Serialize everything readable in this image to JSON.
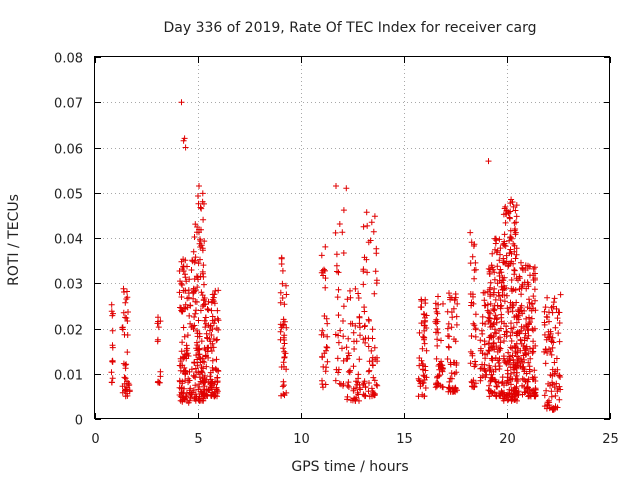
{
  "chart_data": {
    "type": "scatter",
    "title": "Day 336 of 2019, Rate Of TEC Index for receiver carg",
    "xlabel": "GPS time / hours",
    "ylabel": "ROTI / TECUs",
    "xlim": [
      0,
      25
    ],
    "ylim": [
      0,
      0.08
    ],
    "x_ticks": [
      0,
      5,
      10,
      15,
      20,
      25
    ],
    "x_tick_labels": [
      "0",
      "5",
      "10",
      "15",
      "20",
      "25"
    ],
    "y_ticks": [
      0,
      0.01,
      0.02,
      0.03,
      0.04,
      0.05,
      0.06,
      0.07,
      0.08
    ],
    "y_tick_labels": [
      "0",
      "0.01",
      "0.02",
      "0.03",
      "0.04",
      "0.05",
      "0.06",
      "0.07",
      "0.08"
    ],
    "grid": true,
    "marker": "+",
    "marker_color": "#e00000",
    "series": [
      {
        "name": "ROTI",
        "clusters": [
          {
            "x": [
              0.8,
              0.9
            ],
            "y": [
              0.008,
              0.027
            ],
            "count": 14
          },
          {
            "x": [
              1.3,
              1.7
            ],
            "y": [
              0.005,
              0.029
            ],
            "count": 40
          },
          {
            "x": [
              3.0,
              3.2
            ],
            "y": [
              0.008,
              0.024
            ],
            "count": 14
          },
          {
            "x": [
              4.1,
              4.7
            ],
            "y": [
              0.003,
              0.036
            ],
            "count": 110
          },
          {
            "x": [
              4.7,
              5.3
            ],
            "y": [
              0.004,
              0.05
            ],
            "count": 140
          },
          {
            "x": [
              5.3,
              6.0
            ],
            "y": [
              0.005,
              0.03
            ],
            "count": 120
          },
          {
            "x": [
              9.0,
              9.3
            ],
            "y": [
              0.005,
              0.037
            ],
            "count": 40
          },
          {
            "x": [
              11.0,
              11.3
            ],
            "y": [
              0.007,
              0.04
            ],
            "count": 30
          },
          {
            "x": [
              11.6,
              12.1
            ],
            "y": [
              0.007,
              0.05
            ],
            "count": 30
          },
          {
            "x": [
              12.2,
              12.9
            ],
            "y": [
              0.004,
              0.03
            ],
            "count": 55
          },
          {
            "x": [
              13.0,
              13.7
            ],
            "y": [
              0.005,
              0.046
            ],
            "count": 70
          },
          {
            "x": [
              15.7,
              16.1
            ],
            "y": [
              0.005,
              0.03
            ],
            "count": 50
          },
          {
            "x": [
              16.5,
              16.9
            ],
            "y": [
              0.007,
              0.03
            ],
            "count": 45
          },
          {
            "x": [
              17.1,
              17.6
            ],
            "y": [
              0.006,
              0.028
            ],
            "count": 55
          },
          {
            "x": [
              18.2,
              18.5
            ],
            "y": [
              0.007,
              0.042
            ],
            "count": 40
          },
          {
            "x": [
              18.7,
              19.1
            ],
            "y": [
              0.008,
              0.03
            ],
            "count": 35
          },
          {
            "x": [
              19.1,
              19.8
            ],
            "y": [
              0.005,
              0.04
            ],
            "count": 160
          },
          {
            "x": [
              19.8,
              20.5
            ],
            "y": [
              0.004,
              0.048
            ],
            "count": 200
          },
          {
            "x": [
              20.5,
              21.4
            ],
            "y": [
              0.005,
              0.035
            ],
            "count": 170
          },
          {
            "x": [
              21.8,
              22.6
            ],
            "y": [
              0.002,
              0.027
            ],
            "count": 90
          }
        ],
        "outliers": [
          {
            "x": 4.2,
            "y": 0.07
          },
          {
            "x": 4.35,
            "y": 0.062
          },
          {
            "x": 4.3,
            "y": 0.0615
          },
          {
            "x": 4.4,
            "y": 0.06
          },
          {
            "x": 5.05,
            "y": 0.0515
          },
          {
            "x": 11.7,
            "y": 0.0515
          },
          {
            "x": 12.2,
            "y": 0.051
          },
          {
            "x": 19.1,
            "y": 0.057
          },
          {
            "x": 20.2,
            "y": 0.0485
          },
          {
            "x": 22.6,
            "y": 0.0275
          }
        ]
      }
    ]
  }
}
